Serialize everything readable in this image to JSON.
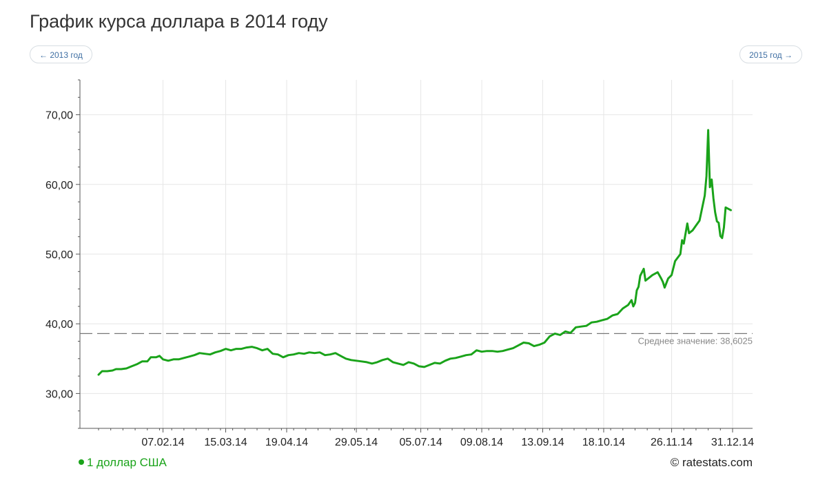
{
  "header": {
    "title": "График курса доллара в 2014 году",
    "prev_label": "← 2013 год",
    "next_label": "2015 год →"
  },
  "legend": {
    "label": "1 доллар США"
  },
  "credit": "© ratestats.com",
  "average": {
    "label": "Среднее значение: 38,6025",
    "value": 38.6025
  },
  "colors": {
    "line": "#1aa31a",
    "grid": "#e6e6e6",
    "axis": "#555555",
    "average": "#777777",
    "link": "#3f6fa3"
  },
  "chart_data": {
    "type": "line",
    "x_start": "2014-01-01",
    "x_end": "2014-12-31",
    "ylim": [
      25,
      75
    ],
    "y_ticks": [
      30,
      40,
      50,
      60,
      70
    ],
    "y_tick_labels": [
      "30,00",
      "40,00",
      "50,00",
      "60,00",
      "70,00"
    ],
    "x_ticks": [
      "2014-02-07",
      "2014-03-15",
      "2014-04-19",
      "2014-05-29",
      "2014-07-05",
      "2014-08-09",
      "2014-09-13",
      "2014-10-18",
      "2014-11-26",
      "2014-12-31"
    ],
    "x_tick_labels": [
      "07.02.14",
      "15.03.14",
      "19.04.14",
      "29.05.14",
      "05.07.14",
      "09.08.14",
      "13.09.14",
      "18.10.14",
      "26.11.14",
      "31.12.14"
    ],
    "grid": true,
    "legend_position": "bottom-left",
    "series": [
      {
        "name": "1 доллар США",
        "points": [
          [
            "2014-01-01",
            32.7
          ],
          [
            "2014-01-03",
            33.2
          ],
          [
            "2014-01-06",
            33.2
          ],
          [
            "2014-01-09",
            33.3
          ],
          [
            "2014-01-11",
            33.5
          ],
          [
            "2014-01-14",
            33.5
          ],
          [
            "2014-01-17",
            33.6
          ],
          [
            "2014-01-20",
            33.9
          ],
          [
            "2014-01-23",
            34.2
          ],
          [
            "2014-01-26",
            34.6
          ],
          [
            "2014-01-29",
            34.6
          ],
          [
            "2014-01-31",
            35.2
          ],
          [
            "2014-02-03",
            35.2
          ],
          [
            "2014-02-05",
            35.4
          ],
          [
            "2014-02-07",
            34.9
          ],
          [
            "2014-02-10",
            34.7
          ],
          [
            "2014-02-13",
            34.9
          ],
          [
            "2014-02-16",
            34.9
          ],
          [
            "2014-02-19",
            35.1
          ],
          [
            "2014-02-22",
            35.3
          ],
          [
            "2014-02-25",
            35.5
          ],
          [
            "2014-02-28",
            35.8
          ],
          [
            "2014-03-03",
            35.7
          ],
          [
            "2014-03-06",
            35.6
          ],
          [
            "2014-03-09",
            35.9
          ],
          [
            "2014-03-12",
            36.1
          ],
          [
            "2014-03-15",
            36.4
          ],
          [
            "2014-03-18",
            36.2
          ],
          [
            "2014-03-21",
            36.4
          ],
          [
            "2014-03-24",
            36.4
          ],
          [
            "2014-03-27",
            36.6
          ],
          [
            "2014-03-30",
            36.7
          ],
          [
            "2014-04-02",
            36.5
          ],
          [
            "2014-04-05",
            36.2
          ],
          [
            "2014-04-08",
            36.4
          ],
          [
            "2014-04-11",
            35.7
          ],
          [
            "2014-04-14",
            35.6
          ],
          [
            "2014-04-17",
            35.2
          ],
          [
            "2014-04-20",
            35.5
          ],
          [
            "2014-04-23",
            35.6
          ],
          [
            "2014-04-26",
            35.8
          ],
          [
            "2014-04-29",
            35.7
          ],
          [
            "2014-05-02",
            35.9
          ],
          [
            "2014-05-05",
            35.8
          ],
          [
            "2014-05-08",
            35.9
          ],
          [
            "2014-05-11",
            35.5
          ],
          [
            "2014-05-14",
            35.6
          ],
          [
            "2014-05-17",
            35.8
          ],
          [
            "2014-05-20",
            35.4
          ],
          [
            "2014-05-23",
            35.0
          ],
          [
            "2014-05-26",
            34.8
          ],
          [
            "2014-05-29",
            34.7
          ],
          [
            "2014-06-01",
            34.6
          ],
          [
            "2014-06-04",
            34.5
          ],
          [
            "2014-06-07",
            34.3
          ],
          [
            "2014-06-10",
            34.5
          ],
          [
            "2014-06-13",
            34.8
          ],
          [
            "2014-06-16",
            35.0
          ],
          [
            "2014-06-19",
            34.5
          ],
          [
            "2014-06-22",
            34.3
          ],
          [
            "2014-06-25",
            34.1
          ],
          [
            "2014-06-28",
            34.5
          ],
          [
            "2014-07-01",
            34.3
          ],
          [
            "2014-07-04",
            33.9
          ],
          [
            "2014-07-07",
            33.8
          ],
          [
            "2014-07-10",
            34.1
          ],
          [
            "2014-07-13",
            34.4
          ],
          [
            "2014-07-16",
            34.3
          ],
          [
            "2014-07-19",
            34.7
          ],
          [
            "2014-07-22",
            35.0
          ],
          [
            "2014-07-25",
            35.1
          ],
          [
            "2014-07-28",
            35.3
          ],
          [
            "2014-07-31",
            35.5
          ],
          [
            "2014-08-03",
            35.6
          ],
          [
            "2014-08-06",
            36.2
          ],
          [
            "2014-08-09",
            36.0
          ],
          [
            "2014-08-12",
            36.1
          ],
          [
            "2014-08-15",
            36.1
          ],
          [
            "2014-08-18",
            36.0
          ],
          [
            "2014-08-21",
            36.1
          ],
          [
            "2014-08-24",
            36.3
          ],
          [
            "2014-08-27",
            36.5
          ],
          [
            "2014-08-30",
            36.9
          ],
          [
            "2014-09-02",
            37.3
          ],
          [
            "2014-09-05",
            37.2
          ],
          [
            "2014-09-08",
            36.8
          ],
          [
            "2014-09-11",
            37.0
          ],
          [
            "2014-09-14",
            37.3
          ],
          [
            "2014-09-17",
            38.2
          ],
          [
            "2014-09-20",
            38.6
          ],
          [
            "2014-09-23",
            38.4
          ],
          [
            "2014-09-26",
            38.9
          ],
          [
            "2014-09-29",
            38.7
          ],
          [
            "2014-10-02",
            39.5
          ],
          [
            "2014-10-05",
            39.6
          ],
          [
            "2014-10-08",
            39.7
          ],
          [
            "2014-10-11",
            40.2
          ],
          [
            "2014-10-14",
            40.3
          ],
          [
            "2014-10-17",
            40.5
          ],
          [
            "2014-10-20",
            40.7
          ],
          [
            "2014-10-23",
            41.2
          ],
          [
            "2014-10-26",
            41.4
          ],
          [
            "2014-10-29",
            42.2
          ],
          [
            "2014-11-01",
            42.7
          ],
          [
            "2014-11-03",
            43.4
          ],
          [
            "2014-11-04",
            42.5
          ],
          [
            "2014-11-05",
            43.0
          ],
          [
            "2014-11-06",
            44.8
          ],
          [
            "2014-11-07",
            45.3
          ],
          [
            "2014-11-08",
            46.9
          ],
          [
            "2014-11-10",
            47.9
          ],
          [
            "2014-11-11",
            46.2
          ],
          [
            "2014-11-13",
            46.6
          ],
          [
            "2014-11-15",
            47.0
          ],
          [
            "2014-11-18",
            47.4
          ],
          [
            "2014-11-20",
            46.5
          ],
          [
            "2014-11-21",
            46.0
          ],
          [
            "2014-11-22",
            45.2
          ],
          [
            "2014-11-24",
            46.5
          ],
          [
            "2014-11-26",
            47.0
          ],
          [
            "2014-11-28",
            49.0
          ],
          [
            "2014-12-01",
            50.0
          ],
          [
            "2014-12-02",
            52.0
          ],
          [
            "2014-12-03",
            51.5
          ],
          [
            "2014-12-05",
            54.4
          ],
          [
            "2014-12-06",
            53.0
          ],
          [
            "2014-12-08",
            53.4
          ],
          [
            "2014-12-10",
            54.1
          ],
          [
            "2014-12-12",
            54.8
          ],
          [
            "2014-12-15",
            58.4
          ],
          [
            "2014-12-16",
            61.2
          ],
          [
            "2014-12-17",
            67.8
          ],
          [
            "2014-12-18",
            59.6
          ],
          [
            "2014-12-19",
            60.7
          ],
          [
            "2014-12-20",
            58.0
          ],
          [
            "2014-12-21",
            56.0
          ],
          [
            "2014-12-22",
            54.7
          ],
          [
            "2014-12-23",
            54.5
          ],
          [
            "2014-12-24",
            52.6
          ],
          [
            "2014-12-25",
            52.3
          ],
          [
            "2014-12-26",
            53.8
          ],
          [
            "2014-12-27",
            56.7
          ],
          [
            "2014-12-30",
            56.3
          ]
        ]
      }
    ]
  }
}
